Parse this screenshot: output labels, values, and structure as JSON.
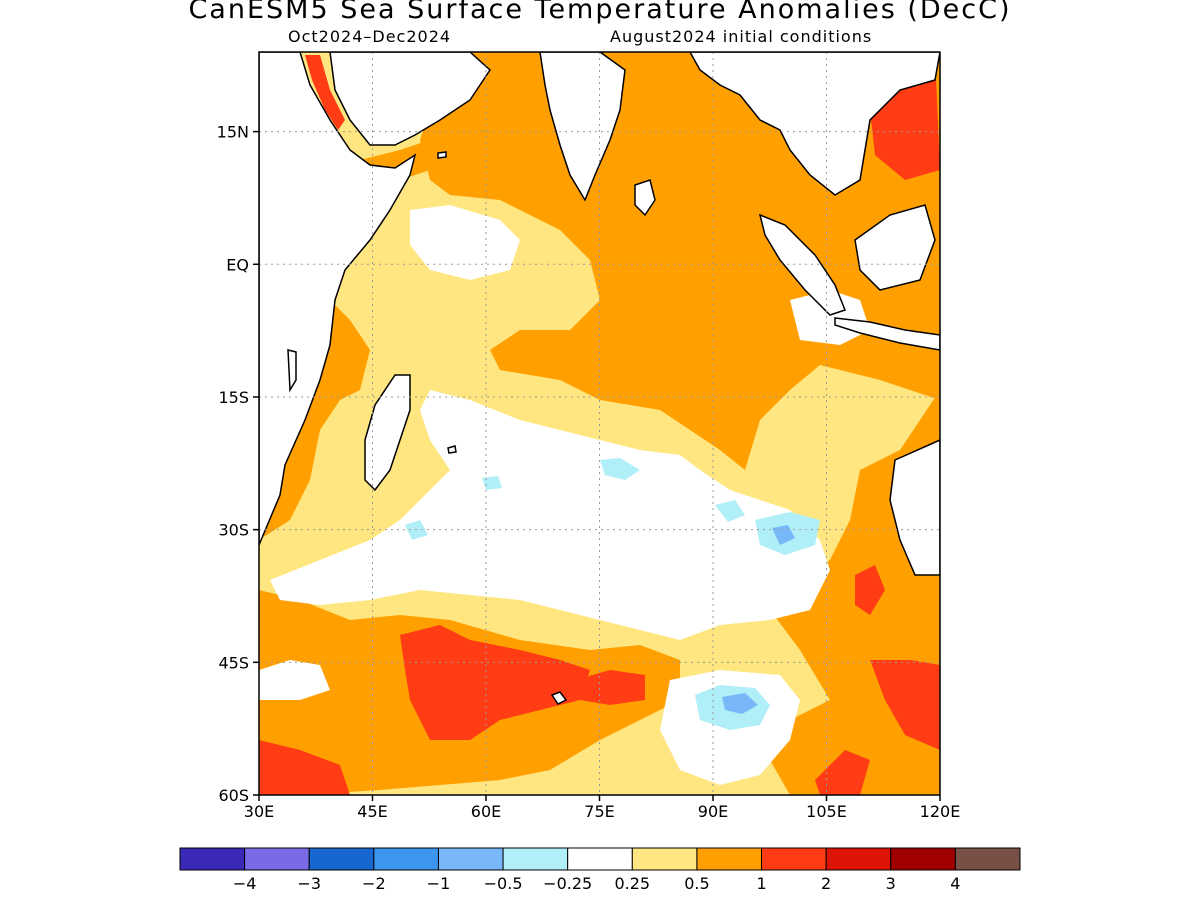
{
  "header": {
    "title": "CanESM5 Sea Surface Temperature Anomalies (DecC)",
    "period": "Oct2024–Dec2024",
    "initial_conditions": "August2024 initial conditions"
  },
  "map": {
    "lon_range": [
      30,
      120
    ],
    "lat_range": [
      -60,
      24
    ],
    "lat_ticks": [
      {
        "lat": 15,
        "label": "15N"
      },
      {
        "lat": 0,
        "label": "EQ"
      },
      {
        "lat": -15,
        "label": "15S"
      },
      {
        "lat": -30,
        "label": "30S"
      },
      {
        "lat": -45,
        "label": "45S"
      },
      {
        "lat": -60,
        "label": "60S"
      }
    ],
    "lon_ticks": [
      {
        "lon": 30,
        "label": "30E"
      },
      {
        "lon": 45,
        "label": "45E"
      },
      {
        "lon": 60,
        "label": "60E"
      },
      {
        "lon": 75,
        "label": "75E"
      },
      {
        "lon": 90,
        "label": "90E"
      },
      {
        "lon": 105,
        "label": "105E"
      },
      {
        "lon": 120,
        "label": "120E"
      }
    ],
    "grid": true
  },
  "colorbar": {
    "colors": [
      "#3a28b8",
      "#7a6ae8",
      "#1866d0",
      "#3c96f0",
      "#78b8f8",
      "#b0eef8",
      "#ffffff",
      "#ffe680",
      "#ffa000",
      "#ff3c14",
      "#dc1406",
      "#a00000",
      "#785046"
    ],
    "labels": [
      "−4",
      "−3",
      "−2",
      "−1",
      "−0.5",
      "−0.25",
      "0.25",
      "0.5",
      "1",
      "2",
      "3",
      "4"
    ]
  },
  "field_colors": {
    "white": "#ffffff",
    "light_orange": "#ffe680",
    "orange": "#ffa000",
    "red": "#ff3c14",
    "light_blue": "#b0eef8",
    "mid_blue": "#78b8f8"
  }
}
